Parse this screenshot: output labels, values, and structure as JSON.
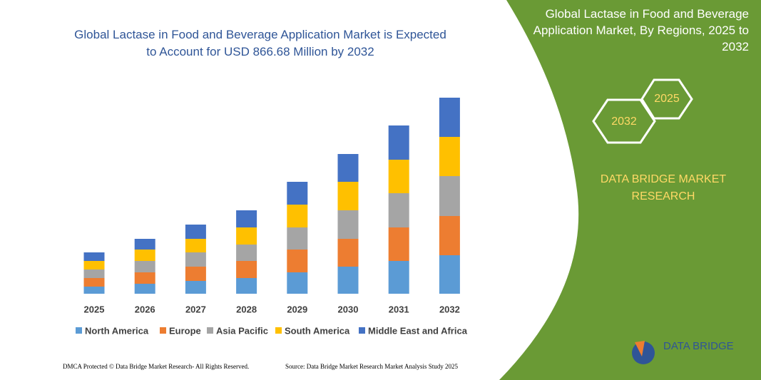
{
  "chart_data": {
    "type": "stacked-bar",
    "title": "Global Lactase in Food and Beverage Application Market is Expected to Account for USD 866.68 Million by 2032",
    "categories": [
      "2025",
      "2026",
      "2027",
      "2028",
      "2029",
      "2030",
      "2031",
      "2032"
    ],
    "series": [
      {
        "name": "North America",
        "color": "#5b9bd5",
        "values": [
          10,
          14,
          18,
          22,
          30,
          38,
          46,
          54
        ]
      },
      {
        "name": "Europe",
        "color": "#ed7d31",
        "values": [
          12,
          16,
          20,
          24,
          32,
          39,
          47,
          55
        ]
      },
      {
        "name": "Asia Pacific",
        "color": "#a5a5a5",
        "values": [
          12,
          16,
          20,
          23,
          31,
          40,
          48,
          56
        ]
      },
      {
        "name": "South America",
        "color": "#ffc000",
        "values": [
          12,
          16,
          19,
          24,
          32,
          40,
          47,
          55
        ]
      },
      {
        "name": "Middle East and Africa",
        "color": "#4472c4",
        "values": [
          12,
          15,
          20,
          24,
          32,
          39,
          48,
          55
        ]
      }
    ]
  },
  "side_panel": {
    "title": "Global Lactase in Food and Beverage Application Market, By Regions, 2025 to 2032",
    "hex_left": "2032",
    "hex_right": "2025",
    "brand": "DATA BRIDGE MARKET RESEARCH",
    "logo": "DATA BRIDGE"
  },
  "footer": {
    "left": "DMCA Protected © Data Bridge Market Research- All Rights Reserved.",
    "right": "Source: Data Bridge Market Research  Market Analysis Study 2025"
  }
}
